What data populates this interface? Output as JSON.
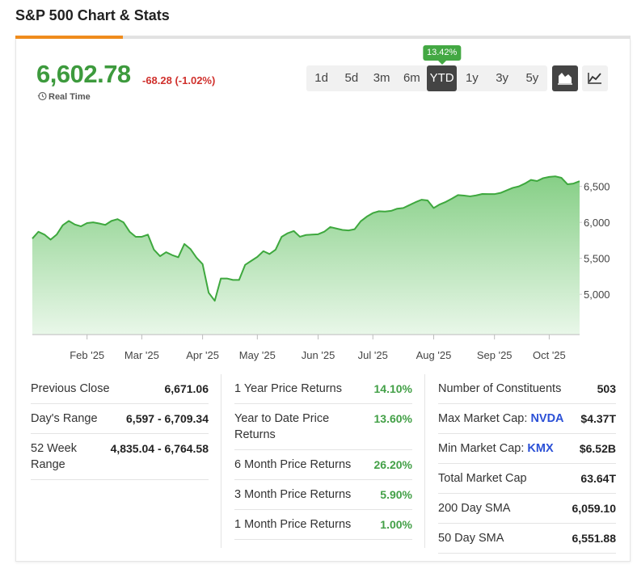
{
  "header": {
    "title": "S&P 500 Chart & Stats"
  },
  "quote": {
    "price": "6,602.78",
    "change": "-68.28 (-1.02%)",
    "status": "Real Time"
  },
  "ranges": {
    "buttons": [
      "1d",
      "5d",
      "3m",
      "6m",
      "YTD",
      "1y",
      "3y",
      "5y"
    ],
    "active": "YTD",
    "tooltip": "13.42%"
  },
  "chart_data": {
    "type": "area",
    "categories": [
      null,
      null,
      null,
      null,
      null,
      null,
      null,
      null,
      null,
      "Feb '25",
      null,
      null,
      null,
      null,
      null,
      null,
      null,
      null,
      "Mar '25",
      null,
      null,
      null,
      null,
      null,
      null,
      null,
      null,
      null,
      "Apr '25",
      null,
      null,
      null,
      null,
      null,
      null,
      null,
      null,
      "May '25",
      null,
      null,
      null,
      null,
      null,
      null,
      null,
      null,
      null,
      "Jun '25",
      null,
      null,
      null,
      null,
      null,
      null,
      null,
      null,
      "Jul '25",
      null,
      null,
      null,
      null,
      null,
      null,
      null,
      null,
      null,
      "Aug '25",
      null,
      null,
      null,
      null,
      null,
      null,
      null,
      null,
      null,
      "Sep '25",
      null,
      null,
      null,
      null,
      null,
      null,
      null,
      null,
      "Oct '25",
      null,
      null,
      null,
      null,
      null
    ],
    "values": [
      5775,
      5870,
      5830,
      5760,
      5830,
      5960,
      6020,
      5970,
      5945,
      5990,
      6000,
      5985,
      5965,
      6020,
      6045,
      6000,
      5870,
      5800,
      5800,
      5830,
      5620,
      5530,
      5585,
      5545,
      5515,
      5700,
      5630,
      5510,
      5420,
      5022,
      4910,
      5220,
      5220,
      5200,
      5200,
      5410,
      5465,
      5520,
      5600,
      5560,
      5620,
      5800,
      5850,
      5880,
      5800,
      5825,
      5830,
      5835,
      5870,
      5935,
      5915,
      5895,
      5888,
      5905,
      6015,
      6080,
      6130,
      6155,
      6150,
      6160,
      6190,
      6200,
      6240,
      6280,
      6315,
      6305,
      6200,
      6250,
      6285,
      6330,
      6380,
      6372,
      6362,
      6375,
      6395,
      6393,
      6393,
      6410,
      6445,
      6480,
      6500,
      6540,
      6590,
      6575,
      6615,
      6632,
      6640,
      6620,
      6530,
      6540,
      6573
    ],
    "color": "#3ea83e",
    "ylim": [
      4440,
      7350
    ],
    "yticks": [
      {
        "value": 5000,
        "label": "5,000"
      },
      {
        "value": 5500,
        "label": "5,500"
      },
      {
        "value": 6000,
        "label": "6,000"
      },
      {
        "value": 6500,
        "label": "6,500"
      }
    ],
    "grid": false
  },
  "stats": [
    {
      "rows": [
        {
          "label": "Previous Close",
          "value": "6,671.06"
        },
        {
          "label": "Day's Range",
          "value": "6,597 - 6,709.34"
        },
        {
          "label": "52 Week Range",
          "value": "4,835.04 - 6,764.58"
        }
      ]
    },
    {
      "value_color": "#43a047",
      "rows": [
        {
          "label": "1 Year Price Returns",
          "value": "14.10%"
        },
        {
          "label": "Year to Date Price Returns",
          "value": "13.60%"
        },
        {
          "label": "6 Month Price Returns",
          "value": "26.20%"
        },
        {
          "label": "3 Month Price Returns",
          "value": "5.90%"
        },
        {
          "label": "1 Month Price Returns",
          "value": "1.00%"
        }
      ]
    },
    {
      "rows": [
        {
          "label": "Number of Constituents",
          "value": "503"
        },
        {
          "label": "Max Market Cap:",
          "link": "NVDA",
          "value": "$4.37T"
        },
        {
          "label": "Min Market Cap:",
          "link": "KMX",
          "value": "$6.52B"
        },
        {
          "label": "Total Market Cap",
          "value": "63.64T"
        },
        {
          "label": "200 Day SMA",
          "value": "6,059.10"
        },
        {
          "label": "50 Day SMA",
          "value": "6,551.88"
        }
      ]
    }
  ]
}
